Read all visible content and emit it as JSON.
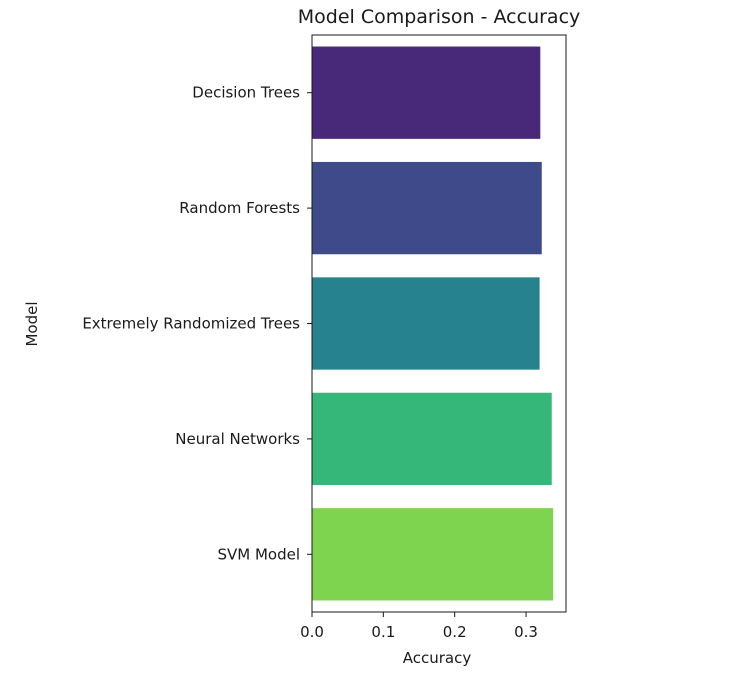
{
  "chart_data": {
    "type": "bar",
    "orientation": "horizontal",
    "title": "Model Comparison - Accuracy",
    "xlabel": "Accuracy",
    "ylabel": "Model",
    "categories": [
      "Decision Trees",
      "Random Forests",
      "Extremely Randomized Trees",
      "Neural Networks",
      "SVM Model"
    ],
    "values": [
      0.32,
      0.322,
      0.319,
      0.336,
      0.338
    ],
    "colors": [
      "#482878",
      "#3e4a89",
      "#26828e",
      "#35b779",
      "#7ed34f"
    ],
    "xlim": [
      0,
      0.356
    ],
    "xticks": [
      0.0,
      0.1,
      0.2,
      0.3
    ],
    "xtick_labels": [
      "0.0",
      "0.1",
      "0.2",
      "0.3"
    ],
    "grid": false,
    "legend": "none"
  }
}
